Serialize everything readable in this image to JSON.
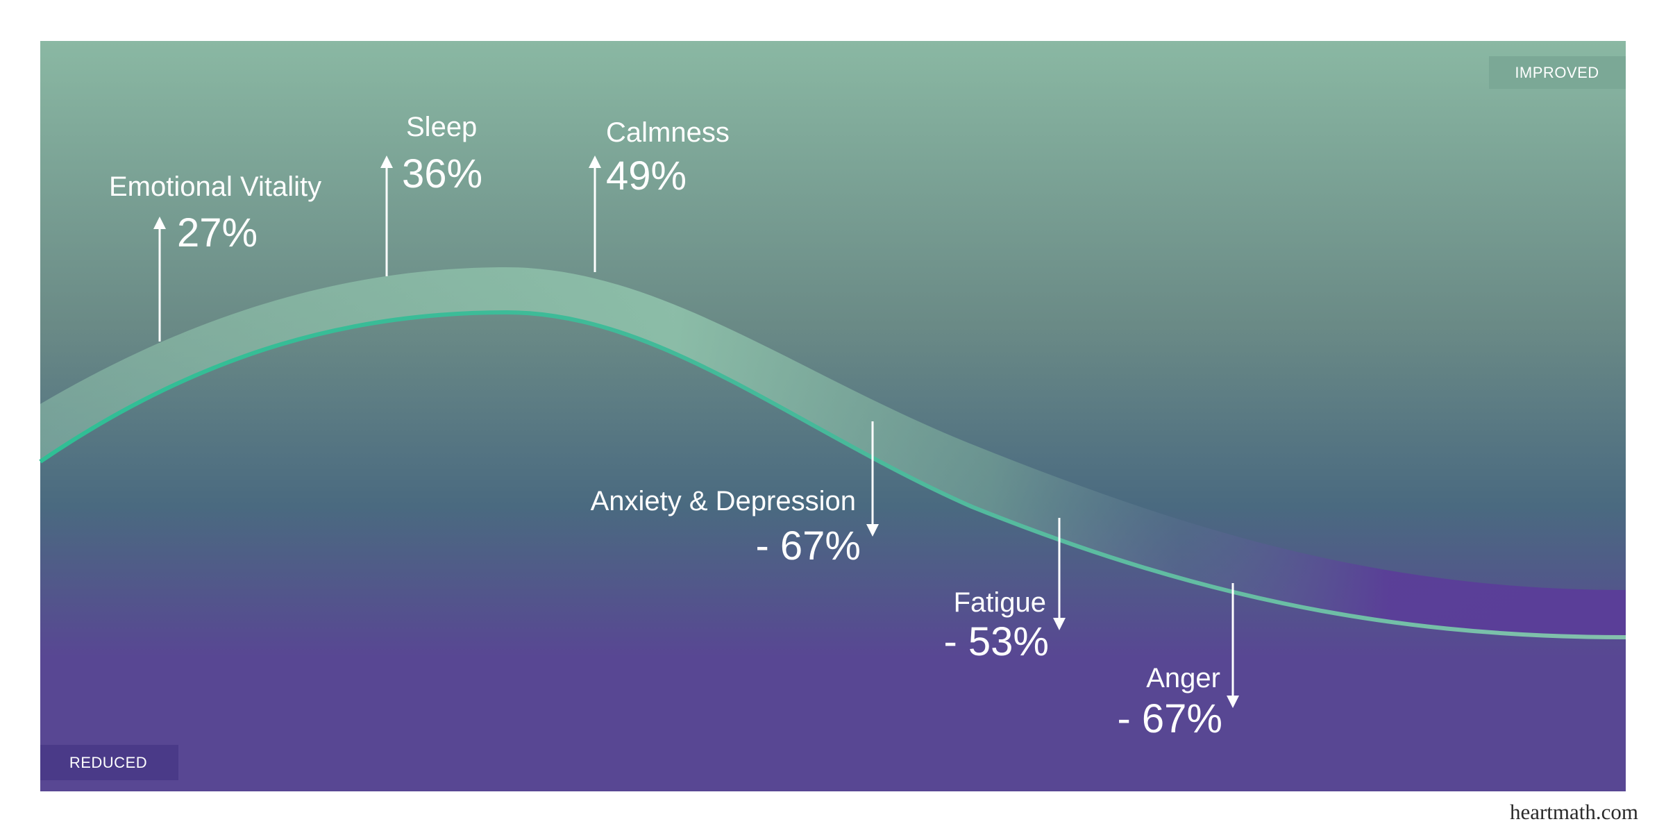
{
  "chart_data": {
    "type": "line",
    "title": "",
    "zones": {
      "top": "IMPROVED",
      "bottom": "REDUCED"
    },
    "items": [
      {
        "label": "Emotional Vitality",
        "value": "27%",
        "change": 27,
        "direction": "up"
      },
      {
        "label": "Sleep",
        "value": "36%",
        "change": 36,
        "direction": "up"
      },
      {
        "label": "Calmness",
        "value": "49%",
        "change": 49,
        "direction": "up"
      },
      {
        "label": "Anxiety & Depression",
        "value": "- 67%",
        "change": -67,
        "direction": "down"
      },
      {
        "label": "Fatigue",
        "value": "- 53%",
        "change": -53,
        "direction": "down"
      },
      {
        "label": "Anger",
        "value": "- 67%",
        "change": -67,
        "direction": "down"
      }
    ],
    "colors": {
      "bg_top": "#8ab8a3",
      "bg_mid": "#4a6a80",
      "bg_bottom": "#584793",
      "band_top": "#8fc2ab",
      "band_bottom": "#5a3e98",
      "curve": "#2fbf95",
      "arrow": "#ffffff",
      "tag_improved": "#7ba896",
      "tag_reduced": "#4a3a88"
    }
  },
  "footer": {
    "source": "heartmath.com"
  }
}
